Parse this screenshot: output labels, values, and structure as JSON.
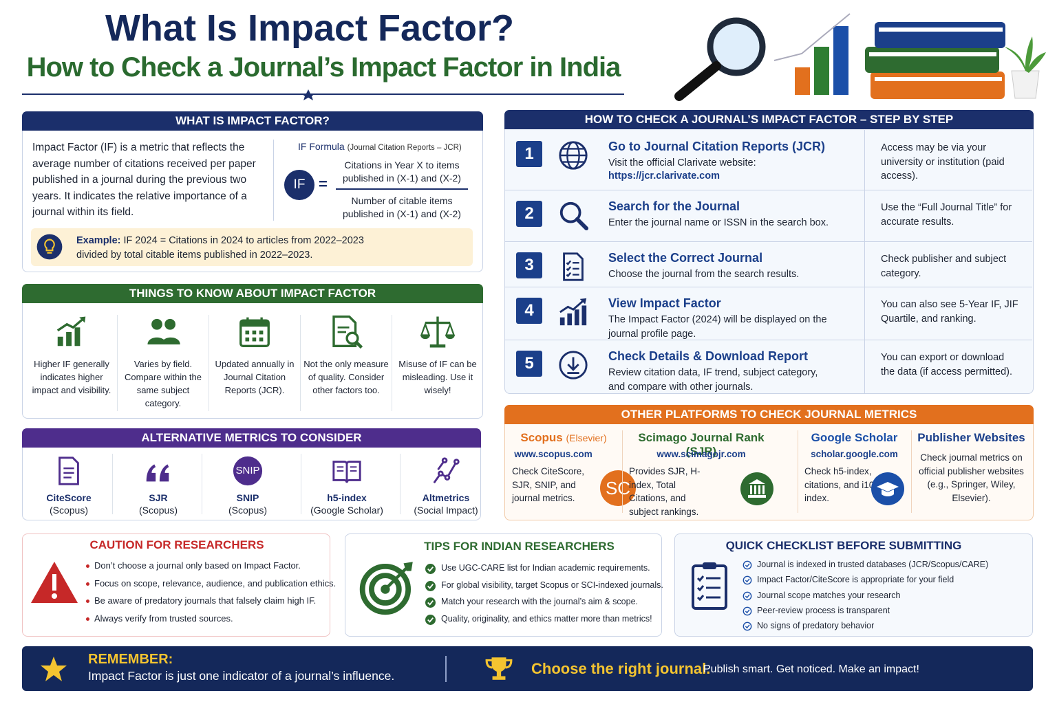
{
  "header": {
    "title": "What Is Impact Factor?",
    "subtitle": "How to Check a Journal’s Impact Factor in India"
  },
  "what_is": {
    "heading": "WHAT IS IMPACT FACTOR?",
    "body": "Impact Factor (IF) is a metric that reflects the average number of citations received per paper published in a journal during the previous two years. It indicates the relative importance of a journal within its field.",
    "formula_label": "IF Formula",
    "formula_source": "(Journal Citation Reports – JCR)",
    "symbol": "IF",
    "equals": "=",
    "numerator": "Citations in Year X to items published in (X-1) and (X-2)",
    "denominator": "Number of citable items published in (X-1) and (X-2)",
    "example_label": "Example:",
    "example": "IF 2024 = Citations in 2024 to articles from 2022–2023 divided by total citable items published in 2022–2023."
  },
  "things": {
    "heading": "THINGS TO KNOW ABOUT IMPACT FACTOR",
    "items": [
      "Higher IF generally indicates higher impact and visibility.",
      "Varies by field. Compare within the same subject category.",
      "Updated annually in Journal Citation Reports (JCR).",
      "Not the only measure of quality. Consider other factors too.",
      "Misuse of IF can be misleading. Use it wisely!"
    ]
  },
  "alternatives": {
    "heading": "ALTERNATIVE METRICS TO CONSIDER",
    "items": [
      {
        "name": "CiteScore",
        "source": "(Scopus)"
      },
      {
        "name": "SJR",
        "source": "(Scopus)"
      },
      {
        "name": "SNIP",
        "source": "(Scopus)",
        "badge": "SNIP"
      },
      {
        "name": "h5-index",
        "source": "(Google Scholar)"
      },
      {
        "name": "Altmetrics",
        "source": "(Social Impact)"
      }
    ]
  },
  "steps": {
    "heading": "HOW TO CHECK A JOURNAL’S IMPACT FACTOR – STEP BY STEP",
    "items": [
      {
        "number": 1,
        "title": "Go to Journal Citation Reports (JCR)",
        "text": "Visit the official Clarivate website:",
        "link": "https://jcr.clarivate.com",
        "note": "Access may be via your university or institution (paid access)."
      },
      {
        "number": 2,
        "title": "Search for the Journal",
        "text": "Enter the journal name or ISSN in the search box.",
        "note": "Use the “Full Journal Title” for accurate results."
      },
      {
        "number": 3,
        "title": "Select the Correct Journal",
        "text": "Choose the journal from the search results.",
        "note": "Check publisher and subject category."
      },
      {
        "number": 4,
        "title": "View Impact Factor",
        "text": "The Impact Factor (2024) will be displayed on the journal profile page.",
        "note": "You can also see 5-Year IF, JIF Quartile, and ranking."
      },
      {
        "number": 5,
        "title": "Check Details & Download Report",
        "text": "Review citation data, IF trend, subject category, and compare with other journals.",
        "note": "You can export or download the data (if access permitted)."
      }
    ]
  },
  "platforms": {
    "heading": "OTHER PLATFORMS TO CHECK JOURNAL METRICS",
    "items": [
      {
        "name": "Scopus",
        "publisher": "(Elsevier)",
        "url": "www.scopus.com",
        "text": "Check CiteScore, SJR, SNIP, and journal metrics.",
        "badge": "SC"
      },
      {
        "name": "Scimago Journal Rank (SJR)",
        "url": "www.scimagojr.com",
        "text": "Provides SJR, H-index, Total Citations, and subject rankings."
      },
      {
        "name": "Google Scholar",
        "url": "scholar.google.com",
        "text": "Check h5-index, citations, and i10-index."
      },
      {
        "name": "Publisher Websites",
        "text": "Check journal metrics on official publisher websites (e.g., Springer, Wiley, Elsevier)."
      }
    ]
  },
  "caution": {
    "heading": "CAUTION FOR RESEARCHERS",
    "items": [
      "Don’t choose a journal only based on Impact Factor.",
      "Focus on scope, relevance, audience, and publication ethics.",
      "Be aware of predatory journals that falsely claim high IF.",
      "Always verify from trusted sources."
    ]
  },
  "tips": {
    "heading": "TIPS FOR INDIAN RESEARCHERS",
    "items": [
      "Use UGC-CARE list for Indian academic requirements.",
      "For global visibility, target Scopus or SCI-indexed journals.",
      "Match your research with the journal’s aim & scope.",
      "Quality, originality, and ethics matter more than metrics!"
    ]
  },
  "checklist": {
    "heading": "QUICK CHECKLIST BEFORE SUBMITTING",
    "items": [
      "Journal is indexed in trusted databases (JCR/Scopus/CARE)",
      "Impact Factor/CiteScore is appropriate for your field",
      "Journal scope matches your research",
      "Peer-review process is transparent",
      "No signs of predatory behavior"
    ]
  },
  "footer": {
    "label": "REMEMBER:",
    "text": "Impact Factor is just one indicator of a journal’s influence.",
    "highlight": "Choose the right journal.",
    "tagline": "Publish smart. Get noticed. Make an impact!"
  }
}
